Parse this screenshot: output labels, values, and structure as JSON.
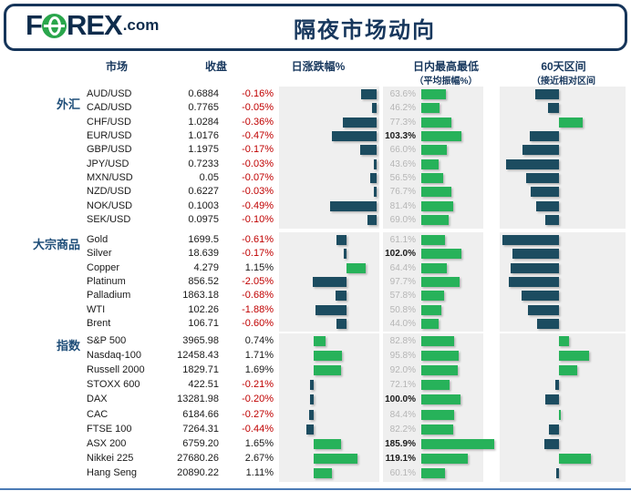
{
  "header": {
    "logo_f": "F",
    "logo_rex": "REX",
    "logo_com": ".com",
    "title": "隔夜市场动向"
  },
  "columns": [
    {
      "label": "市场",
      "sub": ""
    },
    {
      "label": "收盘",
      "sub": ""
    },
    {
      "label": "日涨跌幅%",
      "sub": ""
    },
    {
      "label": "日内最高最低",
      "sub": "（平均振幅%）"
    },
    {
      "label": "60天区间",
      "sub": "（接近相对区间"
    }
  ],
  "colors": {
    "navy_text": "#17375d",
    "bar_navy": "#1c4c60",
    "bar_green": "#27b25a",
    "negative_red": "#c00000",
    "panel_gray": "#efefef",
    "range_label_gray": "#b5b5b5",
    "logo_green": "#2aa64c",
    "bottom_line_blue": "#4a7ab5"
  },
  "chart_data": {
    "type": "table",
    "title": "隔夜市场动向",
    "legend_note": "日涨跌幅% bars: navy = negative, green = positive; 日内最高最低 = intraday range as % of average amplitude (bold when >= 100%); 60天区间 bars = position within 60-day relative range (no numeric labels shown, values estimated in relative px units, negative = left/navy, positive = right/green)",
    "groups": [
      {
        "label": "外汇",
        "rows": [
          {
            "name": "AUD/USD",
            "close": "0.6884",
            "chg": "-0.16%",
            "chg_val": -0.16,
            "range_pct": "63.6%",
            "range_val": 63.6,
            "pos60": -26
          },
          {
            "name": "CAD/USD",
            "close": "0.7765",
            "chg": "-0.05%",
            "chg_val": -0.05,
            "range_pct": "46.2%",
            "range_val": 46.2,
            "pos60": -12
          },
          {
            "name": "CHF/USD",
            "close": "1.0284",
            "chg": "-0.36%",
            "chg_val": -0.36,
            "range_pct": "77.3%",
            "range_val": 77.3,
            "pos60": 26
          },
          {
            "name": "EUR/USD",
            "close": "1.0176",
            "chg": "-0.47%",
            "chg_val": -0.47,
            "range_pct": "103.3%",
            "range_val": 103.3,
            "pos60": -32
          },
          {
            "name": "GBP/USD",
            "close": "1.1975",
            "chg": "-0.17%",
            "chg_val": -0.17,
            "range_pct": "66.0%",
            "range_val": 66.0,
            "pos60": -40
          },
          {
            "name": "JPY/USD",
            "close": "0.7233",
            "chg": "-0.03%",
            "chg_val": -0.03,
            "range_pct": "43.6%",
            "range_val": 43.6,
            "pos60": -58
          },
          {
            "name": "MXN/USD",
            "close": "0.05",
            "chg": "-0.07%",
            "chg_val": -0.07,
            "range_pct": "56.5%",
            "range_val": 56.5,
            "pos60": -36
          },
          {
            "name": "NZD/USD",
            "close": "0.6227",
            "chg": "-0.03%",
            "chg_val": -0.03,
            "range_pct": "76.7%",
            "range_val": 76.7,
            "pos60": -31
          },
          {
            "name": "NOK/USD",
            "close": "0.1003",
            "chg": "-0.49%",
            "chg_val": -0.49,
            "range_pct": "81.4%",
            "range_val": 81.4,
            "pos60": -25
          },
          {
            "name": "SEK/USD",
            "close": "0.0975",
            "chg": "-0.10%",
            "chg_val": -0.1,
            "range_pct": "69.0%",
            "range_val": 69.0,
            "pos60": -15
          }
        ]
      },
      {
        "label": "大宗商品",
        "rows": [
          {
            "name": "Gold",
            "close": "1699.5",
            "chg": "-0.61%",
            "chg_val": -0.61,
            "range_pct": "61.1%",
            "range_val": 61.1,
            "pos60": -62
          },
          {
            "name": "Silver",
            "close": "18.639",
            "chg": "-0.17%",
            "chg_val": -0.17,
            "range_pct": "102.0%",
            "range_val": 102.0,
            "pos60": -51
          },
          {
            "name": "Copper",
            "close": "4.279",
            "chg": "1.15%",
            "chg_val": 1.15,
            "range_pct": "64.4%",
            "range_val": 64.4,
            "pos60": -53
          },
          {
            "name": "Platinum",
            "close": "856.52",
            "chg": "-2.05%",
            "chg_val": -2.05,
            "range_pct": "97.7%",
            "range_val": 97.7,
            "pos60": -55
          },
          {
            "name": "Palladium",
            "close": "1863.18",
            "chg": "-0.68%",
            "chg_val": -0.68,
            "range_pct": "57.8%",
            "range_val": 57.8,
            "pos60": -41
          },
          {
            "name": "WTI",
            "close": "102.26",
            "chg": "-1.88%",
            "chg_val": -1.88,
            "range_pct": "50.8%",
            "range_val": 50.8,
            "pos60": -34
          },
          {
            "name": "Brent",
            "close": "106.71",
            "chg": "-0.60%",
            "chg_val": -0.6,
            "range_pct": "44.0%",
            "range_val": 44.0,
            "pos60": -24
          }
        ]
      },
      {
        "label": "指数",
        "rows": [
          {
            "name": "S&P 500",
            "close": "3965.98",
            "chg": "0.74%",
            "chg_val": 0.74,
            "range_pct": "82.8%",
            "range_val": 82.8,
            "pos60": 11
          },
          {
            "name": "Nasdaq-100",
            "close": "12458.43",
            "chg": "1.71%",
            "chg_val": 1.71,
            "range_pct": "95.8%",
            "range_val": 95.8,
            "pos60": 33
          },
          {
            "name": "Russell 2000",
            "close": "1829.71",
            "chg": "1.69%",
            "chg_val": 1.69,
            "range_pct": "92.0%",
            "range_val": 92.0,
            "pos60": 20
          },
          {
            "name": "STOXX 600",
            "close": "422.51",
            "chg": "-0.21%",
            "chg_val": -0.21,
            "range_pct": "72.1%",
            "range_val": 72.1,
            "pos60": -4
          },
          {
            "name": "DAX",
            "close": "13281.98",
            "chg": "-0.20%",
            "chg_val": -0.2,
            "range_pct": "100.0%",
            "range_val": 100.0,
            "pos60": -15
          },
          {
            "name": "CAC",
            "close": "6184.66",
            "chg": "-0.27%",
            "chg_val": -0.27,
            "range_pct": "84.4%",
            "range_val": 84.4,
            "pos60": 2
          },
          {
            "name": "FTSE 100",
            "close": "7264.31",
            "chg": "-0.44%",
            "chg_val": -0.44,
            "range_pct": "82.2%",
            "range_val": 82.2,
            "pos60": -11
          },
          {
            "name": "ASX 200",
            "close": "6759.20",
            "chg": "1.65%",
            "chg_val": 1.65,
            "range_pct": "185.9%",
            "range_val": 185.9,
            "pos60": -16
          },
          {
            "name": "Nikkei 225",
            "close": "27680.26",
            "chg": "2.67%",
            "chg_val": 2.67,
            "range_pct": "119.1%",
            "range_val": 119.1,
            "pos60": 35
          },
          {
            "name": "Hang Seng",
            "close": "20890.22",
            "chg": "1.11%",
            "chg_val": 1.11,
            "range_pct": "60.1%",
            "range_val": 60.1,
            "pos60": -3
          }
        ]
      }
    ]
  }
}
